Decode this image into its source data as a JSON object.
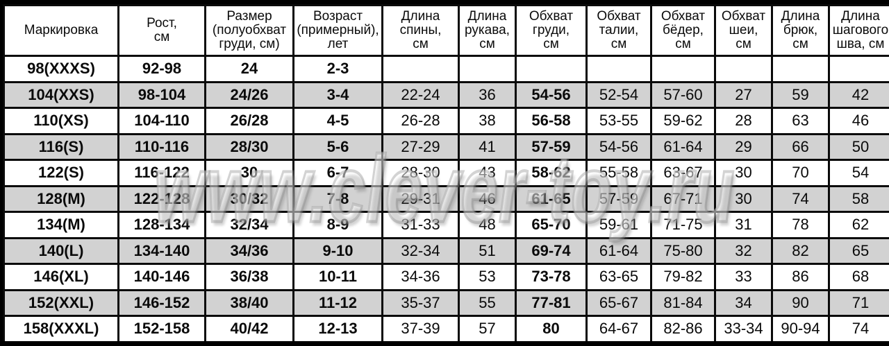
{
  "watermark": {
    "text": "www.clever-toy.ru"
  },
  "colors": {
    "row_stripe": "#d2d2d2",
    "grid_border": "#0a0a0a",
    "watermark_gray": "#8c8c8c"
  },
  "chart_data": {
    "type": "table",
    "columns": [
      "Маркировка",
      "Рост,\nсм",
      "Размер\n(полуобхват\nгруди, см)",
      "Возраст\n(примерный),\nлет",
      "Длина\nспины,\nсм",
      "Длина\nрукава,\nсм",
      "Обхват\nгруди,\nсм",
      "Обхват\nталии,\nсм",
      "Обхват\nбёдер,\nсм",
      "Обхват\nшеи,\nсм",
      "Длина\nбрюк,\nсм",
      "Длина\nшагового\nшва, см"
    ],
    "bold_columns": [
      0,
      1,
      2,
      3,
      6
    ],
    "rows": [
      [
        "98(XXXS)",
        "92-98",
        "24",
        "2-3",
        "",
        "",
        "",
        "",
        "",
        "",
        "",
        ""
      ],
      [
        "104(XXS)",
        "98-104",
        "24/26",
        "3-4",
        "22-24",
        "36",
        "54-56",
        "52-54",
        "57-60",
        "27",
        "59",
        "42"
      ],
      [
        "110(XS)",
        "104-110",
        "26/28",
        "4-5",
        "26-28",
        "38",
        "56-58",
        "53-55",
        "59-62",
        "28",
        "63",
        "46"
      ],
      [
        "116(S)",
        "110-116",
        "28/30",
        "5-6",
        "27-29",
        "41",
        "57-59",
        "54-56",
        "61-64",
        "29",
        "66",
        "50"
      ],
      [
        "122(S)",
        "116-122",
        "30",
        "6-7",
        "28-30",
        "43",
        "58-62",
        "55-58",
        "63-67",
        "30",
        "70",
        "54"
      ],
      [
        "128(M)",
        "122-128",
        "30/32",
        "7-8",
        "29-31",
        "46",
        "61-65",
        "57-59",
        "67-71",
        "30",
        "74",
        "58"
      ],
      [
        "134(M)",
        "128-134",
        "32/34",
        "8-9",
        "31-33",
        "48",
        "65-70",
        "59-61",
        "71-75",
        "31",
        "78",
        "62"
      ],
      [
        "140(L)",
        "134-140",
        "34/36",
        "9-10",
        "32-34",
        "51",
        "69-74",
        "61-64",
        "75-80",
        "32",
        "82",
        "65"
      ],
      [
        "146(XL)",
        "140-146",
        "36/38",
        "10-11",
        "34-36",
        "53",
        "73-78",
        "63-65",
        "79-82",
        "33",
        "86",
        "68"
      ],
      [
        "152(XXL)",
        "146-152",
        "38/40",
        "11-12",
        "35-37",
        "55",
        "77-81",
        "65-67",
        "81-84",
        "34",
        "90",
        "71"
      ],
      [
        "158(XXXL)",
        "152-158",
        "40/42",
        "12-13",
        "37-39",
        "57",
        "80",
        "64-67",
        "82-86",
        "33-34",
        "90-94",
        "74"
      ]
    ]
  }
}
